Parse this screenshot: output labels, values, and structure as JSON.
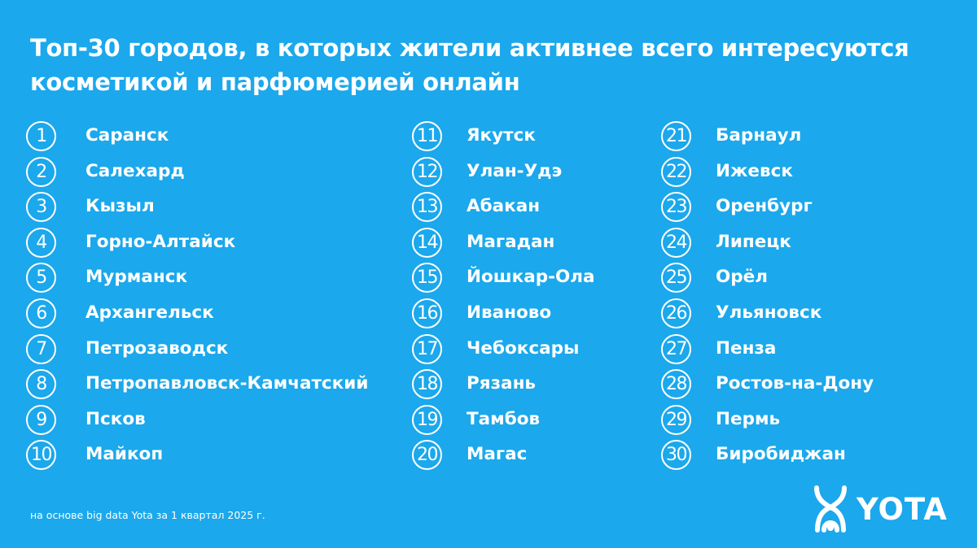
{
  "title": "Топ-30 городов, в которых жители активнее всего интересуются косметикой и парфюмерией онлайн",
  "ranking": [
    {
      "rank": "1",
      "city": "Саранск"
    },
    {
      "rank": "2",
      "city": "Салехард"
    },
    {
      "rank": "3",
      "city": "Кызыл"
    },
    {
      "rank": "4",
      "city": "Горно-Алтайск"
    },
    {
      "rank": "5",
      "city": "Мурманск"
    },
    {
      "rank": "6",
      "city": "Архангельск"
    },
    {
      "rank": "7",
      "city": "Петрозаводск"
    },
    {
      "rank": "8",
      "city": "Петропавловск-Камчатский"
    },
    {
      "rank": "9",
      "city": "Псков"
    },
    {
      "rank": "10",
      "city": "Майкоп"
    },
    {
      "rank": "11",
      "city": "Якутск"
    },
    {
      "rank": "12",
      "city": "Улан-Удэ"
    },
    {
      "rank": "13",
      "city": "Абакан"
    },
    {
      "rank": "14",
      "city": "Магадан"
    },
    {
      "rank": "15",
      "city": "Йошкар-Ола"
    },
    {
      "rank": "16",
      "city": "Иваново"
    },
    {
      "rank": "17",
      "city": "Чебоксары"
    },
    {
      "rank": "18",
      "city": "Рязань"
    },
    {
      "rank": "19",
      "city": "Тамбов"
    },
    {
      "rank": "20",
      "city": "Магас"
    },
    {
      "rank": "21",
      "city": "Барнаул"
    },
    {
      "rank": "22",
      "city": "Ижевск"
    },
    {
      "rank": "23",
      "city": "Оренбург"
    },
    {
      "rank": "24",
      "city": "Липецк"
    },
    {
      "rank": "25",
      "city": "Орёл"
    },
    {
      "rank": "26",
      "city": "Ульяновск"
    },
    {
      "rank": "27",
      "city": "Пенза"
    },
    {
      "rank": "28",
      "city": "Ростов-на-Дону"
    },
    {
      "rank": "29",
      "city": "Пермь"
    },
    {
      "rank": "30",
      "city": "Биробиджан"
    }
  ],
  "footnote": "на основе big data Yota за 1 квартал 2025 г.",
  "logo": {
    "text": "YOTA",
    "icon": "yota-logo-icon"
  },
  "colors": {
    "background": "#1ba8ec",
    "text": "#ffffff"
  }
}
